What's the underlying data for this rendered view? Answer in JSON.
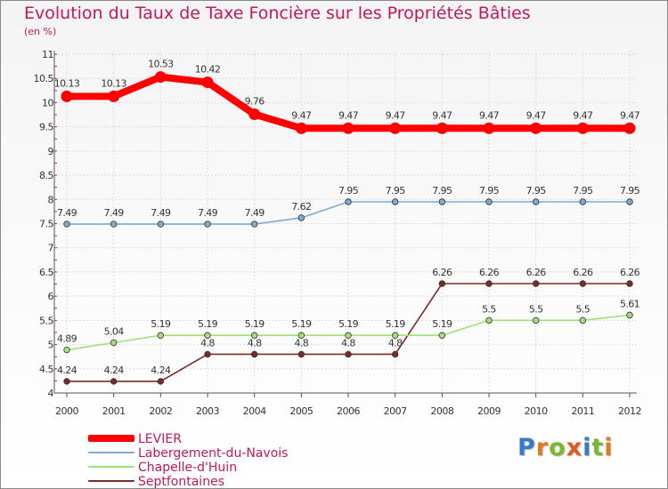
{
  "title": "Evolution du Taux de Taxe Foncière sur les Propriétés Bâties",
  "subtitle": "(en %)",
  "chart_data": {
    "type": "line",
    "title": "Evolution du Taux de Taxe Foncière sur les Propriétés Bâties",
    "ylabel": "(en %)",
    "xlabel": "",
    "x": [
      "2000",
      "2001",
      "2002",
      "2003",
      "2004",
      "2005",
      "2006",
      "2007",
      "2008",
      "2009",
      "2010",
      "2011",
      "2012"
    ],
    "ylim": [
      4,
      11
    ],
    "yticks": [
      "4",
      "4.5",
      "5",
      "5.5",
      "6",
      "6.5",
      "7",
      "7.5",
      "8",
      "8.5",
      "9",
      "9.5",
      "10",
      "10.5",
      "11"
    ],
    "grid": true,
    "series": [
      {
        "name": "LEVIER",
        "color": "#ff0000",
        "values": [
          10.13,
          10.13,
          10.53,
          10.42,
          9.76,
          9.47,
          9.47,
          9.47,
          9.47,
          9.47,
          9.47,
          9.47,
          9.47
        ],
        "labels": [
          "10.13",
          "10.13",
          "10.53",
          "10.42",
          "9.76",
          "9.47",
          "9.47",
          "9.47",
          "9.47",
          "9.47",
          "9.47",
          "9.47",
          "9.47"
        ]
      },
      {
        "name": "Labergement-du-Navois",
        "color": "#7fa9d6",
        "values": [
          7.49,
          7.49,
          7.49,
          7.49,
          7.49,
          7.62,
          7.95,
          7.95,
          7.95,
          7.95,
          7.95,
          7.95,
          7.95
        ],
        "labels": [
          "7.49",
          "7.49",
          "7.49",
          "7.49",
          "7.49",
          "7.62",
          "7.95",
          "7.95",
          "7.95",
          "7.95",
          "7.95",
          "7.95",
          "7.95"
        ]
      },
      {
        "name": "Chapelle-d'Huin",
        "color": "#9fe07a",
        "values": [
          4.89,
          5.04,
          5.19,
          5.19,
          5.19,
          5.19,
          5.19,
          5.19,
          5.19,
          5.5,
          5.5,
          5.5,
          5.61
        ],
        "labels": [
          "4.89",
          "5.04",
          "5.19",
          "5.19",
          "5.19",
          "5.19",
          "5.19",
          "5.19",
          "5.19",
          "5.5",
          "5.5",
          "5.5",
          "5.61"
        ]
      },
      {
        "name": "Septfontaines",
        "color": "#7a2a2a",
        "values": [
          4.24,
          4.24,
          4.24,
          4.8,
          4.8,
          4.8,
          4.8,
          4.8,
          6.26,
          6.26,
          6.26,
          6.26,
          6.26
        ],
        "labels": [
          "4.24",
          "4.24",
          "4.24",
          "4.8",
          "4.8",
          "4.8",
          "4.8",
          "4.8",
          "6.26",
          "6.26",
          "6.26",
          "6.26",
          "6.26"
        ]
      }
    ]
  },
  "legend": {
    "items": [
      {
        "label": "LEVIER",
        "color": "#ff0000"
      },
      {
        "label": "Labergement-du-Navois",
        "color": "#7fa9d6"
      },
      {
        "label": "Chapelle-d'Huin",
        "color": "#9fe07a"
      },
      {
        "label": "Septfontaines",
        "color": "#7a2a2a"
      }
    ]
  },
  "logo": {
    "letters": [
      "P",
      "r",
      "o",
      "x",
      "i",
      "t",
      "i"
    ],
    "colors": [
      "#3a78c8",
      "#e07a20",
      "#7ab830",
      "#e05a20",
      "#3a78c8",
      "#7ab830",
      "#e07a20"
    ]
  }
}
